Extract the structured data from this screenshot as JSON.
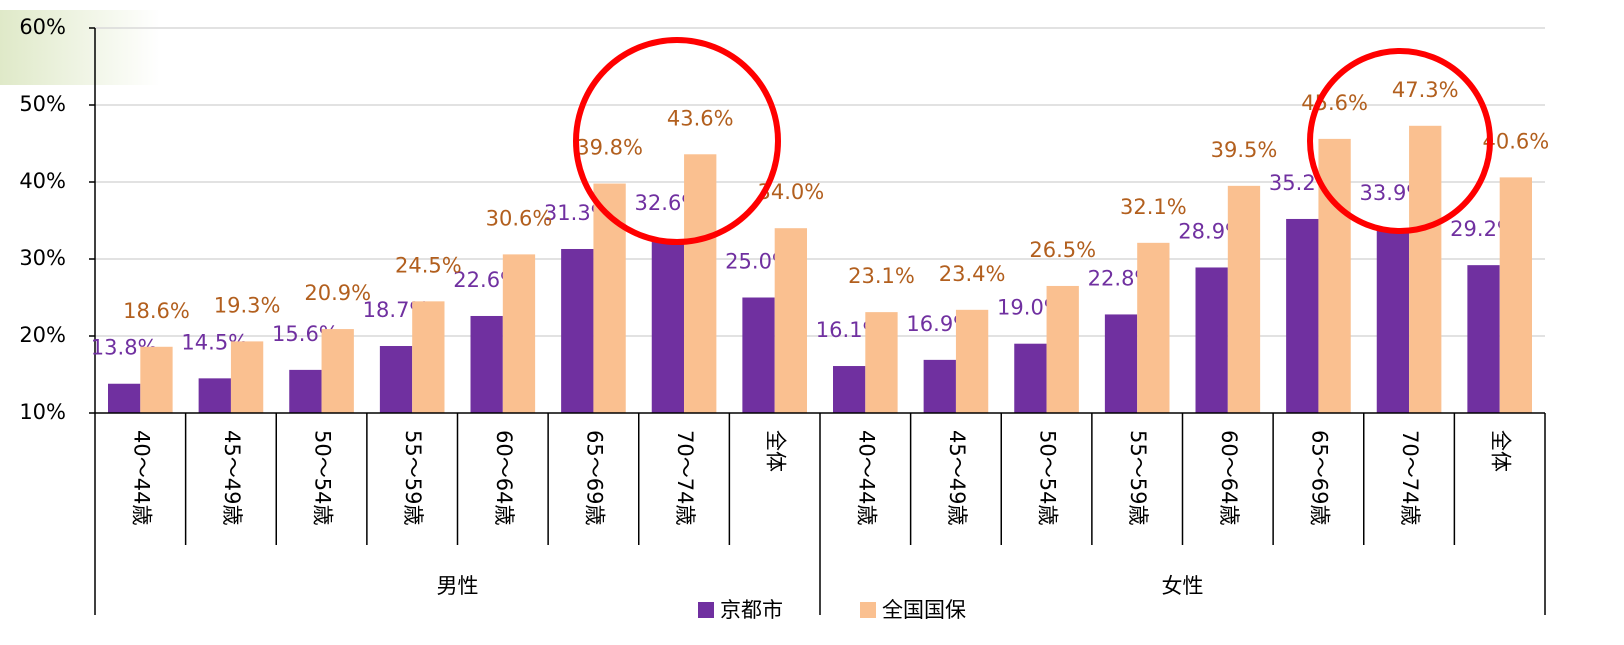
{
  "chart_data": {
    "type": "bar",
    "categories": [
      "40～44歳",
      "45～49歳",
      "50～54歳",
      "55～59歳",
      "60～64歳",
      "65～69歳",
      "70～74歳",
      "全体",
      "40～44歳",
      "45～49歳",
      "50～54歳",
      "55～59歳",
      "60～64歳",
      "65～69歳",
      "70～74歳",
      "全体"
    ],
    "groups": [
      "男性",
      "女性"
    ],
    "series": [
      {
        "name": "京都市",
        "color": "#7030a0",
        "label_color": "#7030a0",
        "values": [
          13.8,
          14.5,
          15.6,
          18.7,
          22.6,
          31.3,
          32.6,
          25.0,
          16.1,
          16.9,
          19.0,
          22.8,
          28.9,
          35.2,
          33.9,
          29.2
        ],
        "value_labels": [
          "13.8%",
          "14.5%",
          "15.6%",
          "18.7%",
          "22.6%",
          "31.3%",
          "32.6%",
          "25.0%",
          "16.1%",
          "16.9%",
          "19.0%",
          "22.8%",
          "28.9%",
          "35.2%",
          "33.9%",
          "29.2%"
        ]
      },
      {
        "name": "全国国保",
        "color": "#fac090",
        "label_color": "#b25f1e",
        "values": [
          18.6,
          19.3,
          20.9,
          24.5,
          30.6,
          39.8,
          43.6,
          34.0,
          23.1,
          23.4,
          26.5,
          32.1,
          39.5,
          45.6,
          47.3,
          40.6
        ],
        "value_labels": [
          "18.6%",
          "19.3%",
          "20.9%",
          "24.5%",
          "30.6%",
          "39.8%",
          "43.6%",
          "34.0%",
          "23.1%",
          "23.4%",
          "26.5%",
          "32.1%",
          "39.5%",
          "45.6%",
          "47.3%",
          "40.6%"
        ]
      }
    ],
    "ylim": [
      10,
      60
    ],
    "yticks": [
      {
        "value": 10,
        "label": "10%"
      },
      {
        "value": 20,
        "label": "20%"
      },
      {
        "value": 30,
        "label": "30%"
      },
      {
        "value": 40,
        "label": "40%"
      },
      {
        "value": 50,
        "label": "50%"
      },
      {
        "value": 60,
        "label": "60%"
      }
    ],
    "grid": true
  }
}
